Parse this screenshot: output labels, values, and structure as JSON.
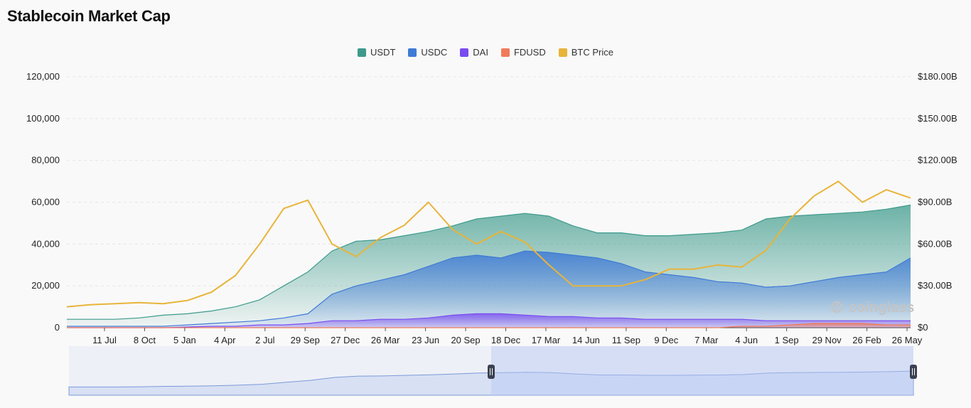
{
  "title": "Stablecoin Market Cap",
  "legend": [
    {
      "label": "USDT",
      "color": "#3d9a8b"
    },
    {
      "label": "USDC",
      "color": "#3f7ad6"
    },
    {
      "label": "DAI",
      "color": "#7a4cf0"
    },
    {
      "label": "FDUSD",
      "color": "#f07a5a"
    },
    {
      "label": "BTC Price",
      "color": "#e8b43a"
    }
  ],
  "watermark": "coinglass",
  "chart_data": {
    "type": "area",
    "left_axis": {
      "ticks": [
        "0",
        "20,000",
        "40,000",
        "60,000",
        "80,000",
        "100,000",
        "120,000"
      ],
      "range": [
        0,
        120000
      ]
    },
    "right_axis": {
      "ticks": [
        "$0",
        "$30.00B",
        "$60.00B",
        "$90.00B",
        "$120.00B",
        "$150.00B",
        "$180.00B"
      ],
      "range": [
        0,
        180
      ]
    },
    "x_ticks": [
      "11 Jul",
      "8 Oct",
      "5 Jan",
      "4 Apr",
      "2 Jul",
      "29 Sep",
      "27 Dec",
      "26 Mar",
      "23 Jun",
      "20 Sep",
      "18 Dec",
      "17 Mar",
      "14 Jun",
      "11 Sep",
      "9 Dec",
      "7 Mar",
      "4 Jun",
      "1 Sep",
      "29 Nov",
      "26 Feb",
      "26 May"
    ],
    "x": [
      0,
      2,
      4,
      6,
      8,
      10,
      12,
      14,
      16,
      18,
      20,
      22,
      24,
      26,
      28,
      30,
      32,
      34,
      36,
      38,
      40,
      42,
      44,
      46,
      48,
      50,
      52,
      54,
      56,
      58,
      60,
      62,
      64,
      66,
      68,
      70
    ],
    "series": [
      {
        "name": "USDT",
        "axis": "right",
        "unit": "B USD",
        "values": [
          6,
          6,
          6,
          7,
          9,
          10,
          12,
          15,
          20,
          30,
          40,
          55,
          62,
          63,
          66,
          69,
          73,
          78,
          80,
          82,
          80,
          73,
          68,
          68,
          66,
          66,
          67,
          68,
          70,
          78,
          80,
          81,
          82,
          83,
          85,
          88
        ]
      },
      {
        "name": "USDC",
        "axis": "right",
        "unit": "B USD",
        "values": [
          1,
          1,
          1,
          1,
          1,
          2,
          3,
          4,
          5,
          7,
          10,
          24,
          30,
          34,
          38,
          44,
          50,
          52,
          50,
          55,
          54,
          52,
          50,
          46,
          40,
          38,
          36,
          33,
          32,
          29,
          30,
          33,
          36,
          38,
          40,
          50
        ]
      },
      {
        "name": "DAI",
        "axis": "right",
        "unit": "B USD",
        "values": [
          0,
          0,
          0,
          0,
          0,
          0.5,
          1,
          1,
          2,
          2,
          3,
          5,
          5,
          6,
          6,
          7,
          9,
          10,
          10,
          9,
          8,
          8,
          7,
          7,
          6,
          6,
          6,
          6,
          6,
          5,
          5,
          5,
          5,
          5,
          5,
          5
        ]
      },
      {
        "name": "FDUSD",
        "axis": "right",
        "unit": "B USD",
        "values": [
          0,
          0,
          0,
          0,
          0,
          0,
          0,
          0,
          0,
          0,
          0,
          0,
          0,
          0,
          0,
          0,
          0,
          0,
          0,
          0,
          0,
          0,
          0,
          0,
          0,
          0,
          0,
          0,
          1,
          1,
          2,
          3,
          3,
          3,
          2,
          2
        ]
      },
      {
        "name": "BTC Price",
        "axis": "left",
        "unit": "USD",
        "values": [
          10000,
          11000,
          11500,
          12000,
          11500,
          13000,
          17000,
          25000,
          40000,
          57000,
          61000,
          40000,
          34000,
          43000,
          49000,
          60000,
          47000,
          40000,
          46000,
          41000,
          30000,
          20000,
          20000,
          20000,
          23000,
          28000,
          28000,
          30000,
          29000,
          37000,
          52000,
          63000,
          70000,
          60000,
          66000,
          62000
        ]
      }
    ]
  },
  "navigator": {
    "selected_range": [
      0.5,
      1.0
    ]
  }
}
